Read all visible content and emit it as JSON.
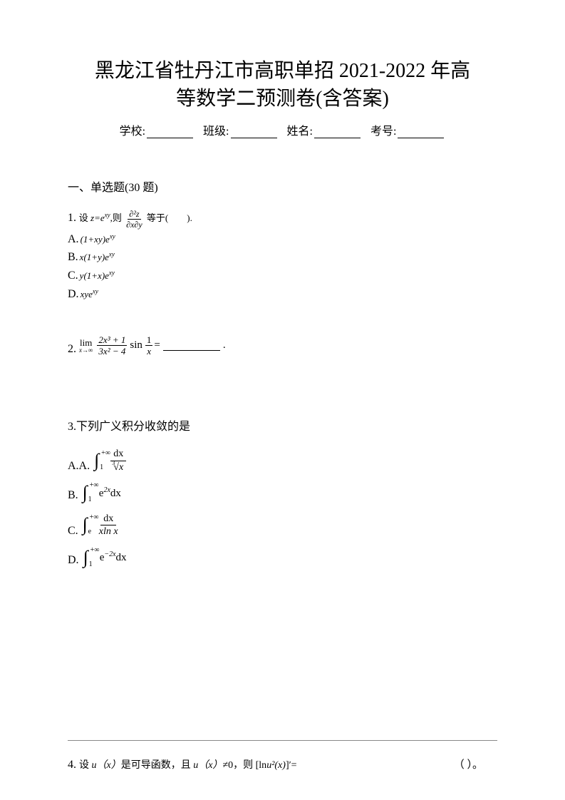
{
  "title_line1": "黑龙江省牡丹江市高职单招 2021-2022 年高",
  "title_line2": "等数学二预测卷(含答案)",
  "info": {
    "school_label": "学校:",
    "class_label": "班级:",
    "name_label": "姓名:",
    "number_label": "考号:"
  },
  "section_header": "一、单选题(30 题)",
  "q1": {
    "num": "1.",
    "text_prefix": "设 ",
    "z_eq": "z=e",
    "z_sup": "xy",
    "text_mid": ",则",
    "partial_top": "∂²z",
    "partial_bot": "∂x∂y",
    "text_suffix": "等于(　　).",
    "options": {
      "A": {
        "label": "A.",
        "text": "(1+xy)e",
        "sup": "xy"
      },
      "B": {
        "label": "B.",
        "text": "x(1+y)e",
        "sup": "xy"
      },
      "C": {
        "label": "C.",
        "text": "y(1+x)e",
        "sup": "xy"
      },
      "D": {
        "label": "D.",
        "text": "xye",
        "sup": "xy"
      }
    }
  },
  "q2": {
    "num": "2.",
    "lim": "lim",
    "lim_sub": "x→∞",
    "frac1_top": "2x³ + 1",
    "frac1_bot": "3x² − 4",
    "sin": "sin",
    "frac2_top": "1",
    "frac2_bot": "x",
    "equals": " = ",
    "period": "."
  },
  "q3": {
    "num": "3.",
    "text": "下列广义积分收敛的是",
    "options": {
      "A": {
        "label": "A.A.",
        "upper": "+∞",
        "lower": "1",
        "body_type": "frac",
        "top": "dx",
        "bot_root_idx": "3",
        "bot_root": "√x"
      },
      "B": {
        "label": "B.",
        "upper": "+∞",
        "lower": "1",
        "body_type": "plain",
        "body": "e",
        "body_sup": "2x",
        "body_suffix": "dx"
      },
      "C": {
        "label": "C.",
        "upper": "+∞",
        "lower": "e",
        "body_type": "frac",
        "top": "dx",
        "bot": "xln x"
      },
      "D": {
        "label": "D.",
        "upper": "+∞",
        "lower": "1",
        "body_type": "plain",
        "body": "e",
        "body_sup": "−2x",
        "body_suffix": "dx"
      }
    }
  },
  "q4": {
    "num": "4.",
    "text1": "设 ",
    "ux": "u（x）",
    "text2": "是可导函数，且 ",
    "ux2": "u（x）",
    "neq": "≠0，则 ",
    "ln": "[ln",
    "u2": "u²(x)",
    "prime": "]′=",
    "paren": "（ ）。"
  },
  "colors": {
    "background": "#ffffff",
    "text": "#000000",
    "divider": "#888888"
  },
  "fonts": {
    "body": "SimSun",
    "math": "Times New Roman",
    "title_size": 28,
    "body_size": 16
  }
}
